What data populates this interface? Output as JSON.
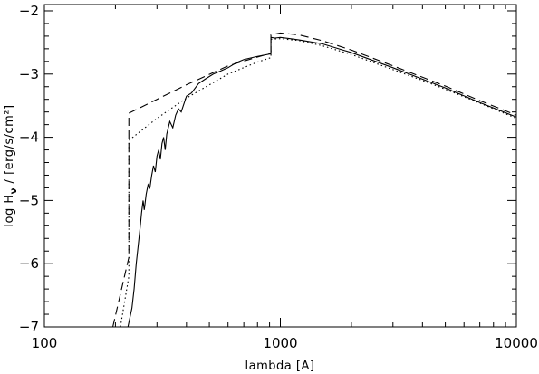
{
  "chart_data": {
    "type": "line",
    "x_scale": "log",
    "xlim": [
      100,
      10000
    ],
    "ylim": [
      -7,
      -1.9
    ],
    "xlabel": "lambda [A]",
    "ylabel": "log Hν / [erg/s/cm²]",
    "ylabel_parts": {
      "main": "log H",
      "sub": "ν",
      "rest": " / [erg/s/cm²]"
    },
    "x_ticks": [
      100,
      1000,
      10000
    ],
    "x_tick_labels": [
      "100",
      "1000",
      "10000"
    ],
    "y_ticks": [
      -7,
      -6,
      -5,
      -4,
      -3,
      -2
    ],
    "y_tick_labels": [
      "−7",
      "−6",
      "−5",
      "−4",
      "−3",
      "−2"
    ],
    "grid": false,
    "series": [
      {
        "style": "dashed",
        "x": [
          195,
          228,
          228,
          300,
          400,
          600,
          800,
          912,
          912,
          1000,
          1200,
          1500,
          2000,
          3000,
          4000,
          5000,
          7000,
          10000
        ],
        "y": [
          -7.0,
          -5.9,
          -3.62,
          -3.4,
          -3.17,
          -2.87,
          -2.73,
          -2.67,
          -2.38,
          -2.35,
          -2.38,
          -2.47,
          -2.62,
          -2.87,
          -3.05,
          -3.19,
          -3.42,
          -3.65
        ]
      },
      {
        "style": "dotted",
        "x": [
          210,
          228,
          228,
          300,
          400,
          600,
          800,
          912,
          912,
          1000,
          1200,
          1500,
          2000,
          3000,
          4000,
          5000,
          7000,
          10000
        ],
        "y": [
          -7.0,
          -6.2,
          -4.05,
          -3.7,
          -3.38,
          -3.0,
          -2.81,
          -2.74,
          -2.45,
          -2.44,
          -2.47,
          -2.55,
          -2.69,
          -2.93,
          -3.1,
          -3.24,
          -3.46,
          -3.7
        ]
      },
      {
        "style": "solid",
        "x": [
          226,
          235,
          240,
          245,
          250,
          255,
          258,
          262,
          265,
          270,
          275,
          280,
          285,
          290,
          295,
          300,
          305,
          310,
          315,
          320,
          325,
          330,
          340,
          350,
          360,
          370,
          380,
          400,
          420,
          450,
          480,
          520,
          560,
          600,
          650,
          700,
          800,
          912,
          912,
          950,
          1000,
          1100,
          1200,
          1500,
          2000,
          3000,
          4000,
          5000,
          7000,
          10000
        ],
        "y": [
          -7.0,
          -6.7,
          -6.4,
          -6.0,
          -5.7,
          -5.4,
          -5.2,
          -5.0,
          -5.15,
          -4.9,
          -4.75,
          -4.8,
          -4.6,
          -4.45,
          -4.55,
          -4.3,
          -4.2,
          -4.35,
          -4.1,
          -4.0,
          -4.2,
          -3.95,
          -3.75,
          -3.85,
          -3.65,
          -3.55,
          -3.6,
          -3.35,
          -3.3,
          -3.15,
          -3.08,
          -3.0,
          -2.95,
          -2.9,
          -2.82,
          -2.77,
          -2.72,
          -2.68,
          -2.42,
          -2.43,
          -2.42,
          -2.44,
          -2.46,
          -2.52,
          -2.66,
          -2.9,
          -3.08,
          -3.22,
          -3.45,
          -3.68
        ]
      }
    ]
  }
}
